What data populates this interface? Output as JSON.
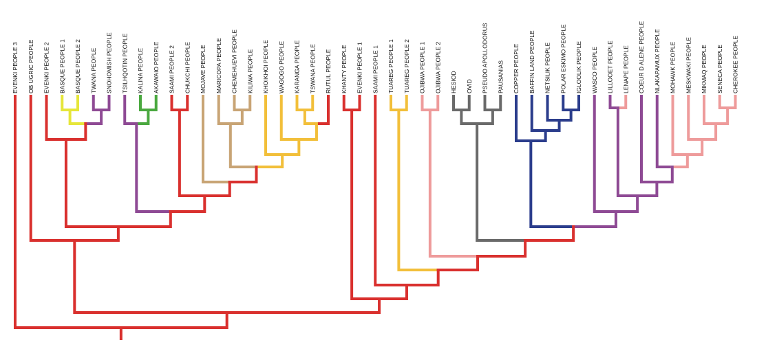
{
  "leaves": [
    "EVENKI PEOPLE 3",
    "OB UGRIC PEOPLE",
    "EVENKI PEOPLE 2",
    "BASQUE PEOPLE 1",
    "BASQUE PEOPLE 2",
    "TWANA PEOPLE",
    "SNOHOMISH PEOPLE",
    "TSILHQOTIN PEOPLE",
    "KALINA PEOPLE",
    "AKAWAIO PEOPLE",
    "SAAMI PEOPLE 2",
    "CHUKCHI PEOPLE",
    "MOJAVE PEOPLE",
    "MARICOPA PEOPLE",
    "CHEMEHUEVI PEOPLE",
    "KILIWA PEOPLE",
    "KHOIKHOI PEOPLE",
    "WAGOGO PEOPLE",
    "KARANGA PEOPLE",
    "TSWANA PEOPLE",
    "RUTUL PEOPLE",
    "KHANTY PEOPLE",
    "EVENKI PEOPLE 1",
    "SAAMI PEOPLE 1",
    "TUAREG PEOPLE 1",
    "TUAREG PEOPLE 2",
    "OJIBWA PEOPLE 1",
    "OJIBWA PEOPLE 2",
    "HESIOD",
    "OVID",
    "PSEUDO APOLLODORUS",
    "PAUSANIAS",
    "COPPER PEOPLE",
    "BAFFIN LAND PEOPLE",
    "NETSILIK PEOPLE",
    "POLAR ESKIMO PEOPLE",
    "IGLOOLIK PEOPLE",
    "WASCO PEOPLE",
    "LILLOOET PEOPLE",
    "LENAPE PEOPLE",
    "COEUR D ALENE PEOPLE",
    "NLAKAPAMUX PEOPLE",
    "MOHAWK PEOPLE",
    "MESKWAKI PEOPLE",
    "MIKMAQ PEOPLE",
    "SENECA PEOPLE",
    "CHEROKEE PEOPLE"
  ]
}
